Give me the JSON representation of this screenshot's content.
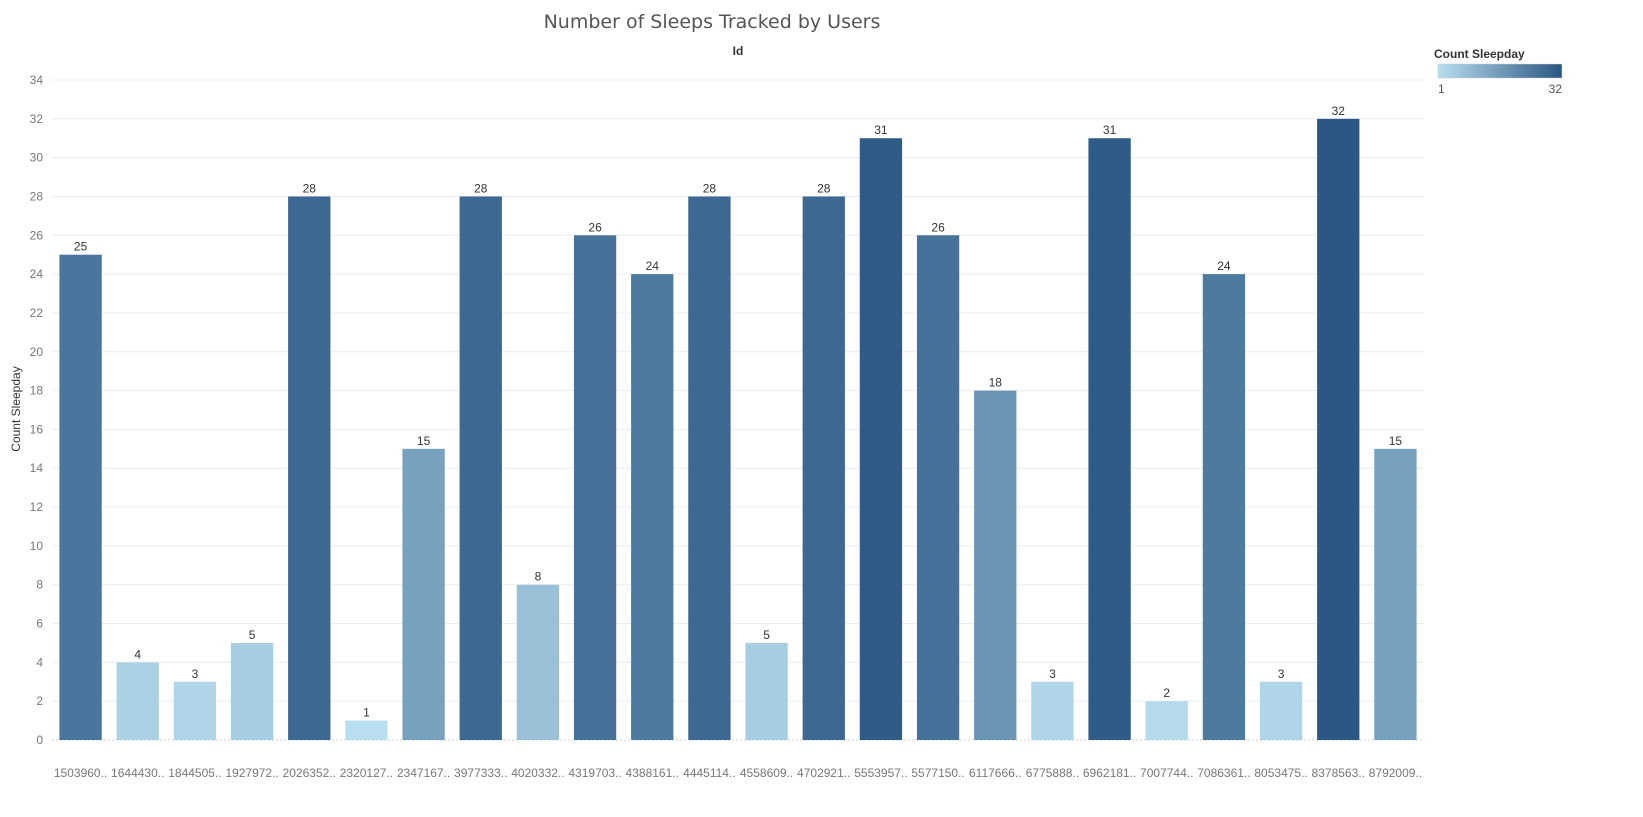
{
  "chart_data": {
    "type": "bar",
    "title": "Number of Sleeps Tracked by Users",
    "top_label": "Id",
    "xlabel": "",
    "ylabel": "Count Sleepday",
    "ylim": [
      0,
      34
    ],
    "yticks": [
      0,
      2,
      4,
      6,
      8,
      10,
      12,
      14,
      16,
      18,
      20,
      22,
      24,
      26,
      28,
      30,
      32,
      34
    ],
    "grid": true,
    "categories": [
      "1503960..",
      "1644430..",
      "1844505..",
      "1927972..",
      "2026352..",
      "2320127..",
      "2347167..",
      "3977333..",
      "4020332..",
      "4319703..",
      "4388161..",
      "4445114..",
      "4558609..",
      "4702921..",
      "5553957..",
      "5577150..",
      "6117666..",
      "6775888..",
      "6962181..",
      "7007744..",
      "7086361..",
      "8053475..",
      "8378563..",
      "8792009.."
    ],
    "values": [
      25,
      4,
      3,
      5,
      28,
      1,
      15,
      28,
      8,
      26,
      24,
      28,
      5,
      28,
      31,
      26,
      18,
      3,
      31,
      2,
      24,
      3,
      32,
      15
    ],
    "data_labels": true,
    "legend": {
      "title": "Count Sleepday",
      "placement": "top-right",
      "type": "color-gradient",
      "min_label": "1",
      "max_label": "32",
      "min": 1,
      "max": 32,
      "color_low": "#b9def0",
      "color_high": "#2a5783"
    }
  }
}
